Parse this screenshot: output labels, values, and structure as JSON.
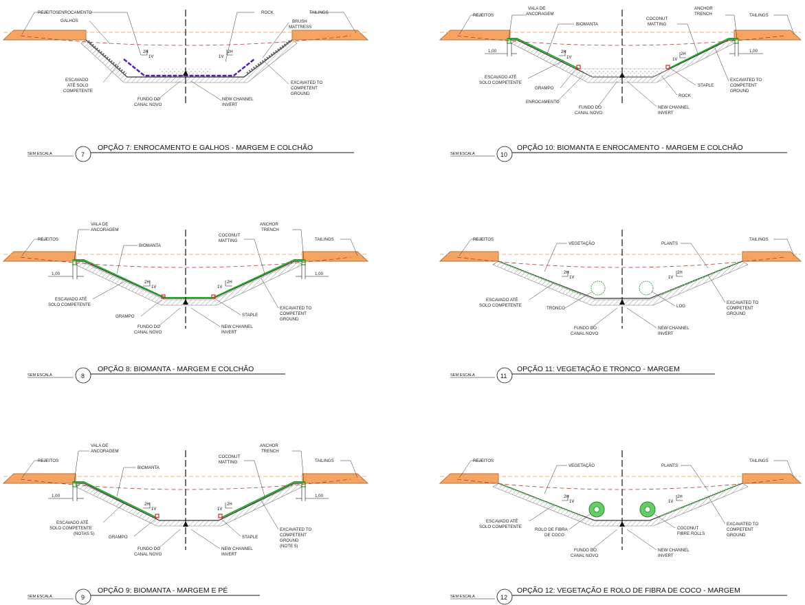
{
  "colors": {
    "ground": "#f4a460",
    "ground_edge": "#b9733a",
    "water_line": "#f0b070",
    "dashed_red": "#b03a3a",
    "mat": "#22aa22",
    "purple": "#5522aa",
    "staple": "#dd2222",
    "hatch": "#888888"
  },
  "sections": [
    {
      "number": "7",
      "scale": "SEM ESCALA",
      "title": "OPÇÃO 7: ENROCAMENTO E GALHOS - MARGEM E COLCHÃO",
      "slope_left": [
        "2H",
        "1V"
      ],
      "slope_right": [
        "1V",
        "2H"
      ],
      "labels": [
        "REJEITOS",
        "ENROCAMENTO",
        "GALHOS",
        "ROCK",
        "TAILINGS",
        "BRUSH",
        "MATTRESS",
        "ESCAVADO",
        "ATÉ SOLO",
        "COMPETENTE",
        "FUNDO DO",
        "CANAL NOVO",
        "NEW CHANNEL",
        "INVERT",
        "EXCAVATED TO",
        "COMPETENT",
        "GROUND"
      ]
    },
    {
      "number": "10",
      "scale": "SEM ESCALA",
      "title": "OPÇÃO 10: BIOMANTA E ENROCAMENTO - MARGEM E COLCHÃO",
      "slope_left": [
        "2H",
        "1V"
      ],
      "slope_right": [
        "1V",
        "2H"
      ],
      "dim_left": "1,00",
      "dim_right": "1,00",
      "labels": [
        "REJEITOS",
        "VALA DE",
        "ANCORAGEM",
        "BIOMANTA",
        "COCONUT",
        "MATTING",
        "ANCHOR",
        "TRENCH",
        "TAILINGS",
        "ESCAVADO ATÉ",
        "SOLO COMPETENTE",
        "GRAMPO",
        "ENROCAMENTO",
        "FUNDO DO",
        "CANAL NOVO",
        "NEW CHANNEL",
        "INVERT",
        "ROCK",
        "STAPLE",
        "EXCAVATED TO",
        "COMPETENT",
        "GROUND"
      ]
    },
    {
      "number": "8",
      "scale": "SEM ESCALA",
      "title": "OPÇÃO 8: BIOMANTA - MARGEM E COLCHÃO",
      "slope_left": [
        "2H",
        "1V"
      ],
      "slope_right": [
        "1V",
        "2H"
      ],
      "dim_left": "1,00",
      "dim_right": "1,00",
      "labels": [
        "REJEITOS",
        "VALA DE",
        "ANCORAGEM",
        "BIOMANTA",
        "COCONUT",
        "MATTING",
        "ANCHOR",
        "TRENCH",
        "TAILINGS",
        "ESCAVADO ATÉ",
        "SOLO COMPETENTE",
        "GRAMPO",
        "FUNDO DO",
        "CANAL NOVO",
        "NEW CHANNEL",
        "INVERT",
        "STAPLE",
        "EXCAVATED TO",
        "COMPETENT",
        "GROUND"
      ]
    },
    {
      "number": "11",
      "scale": "SEM ESCALA",
      "title": "OPÇÃO 11: VEGETAÇÃO E TRONCO - MARGEM",
      "slope_left": [
        "2H",
        "1V"
      ],
      "slope_right": [
        "1V",
        "2H"
      ],
      "labels": [
        "REJEITOS",
        "VEGETAÇÃO",
        "PLANTS",
        "TAILINGS",
        "ESCAVADO ATÉ",
        "SOLO COMPETENTE",
        "TRONCO",
        "LOG",
        "FUNDO DO",
        "CANAL NOVO",
        "NEW CHANNEL",
        "INVERT",
        "EXCAVATED TO",
        "COMPETENT",
        "GROUND"
      ]
    },
    {
      "number": "9",
      "scale": "SEM ESCALA",
      "title": "OPÇÃO 9: BIOMANTA - MARGEM E PÉ",
      "slope_left": [
        "2H",
        "1V"
      ],
      "slope_right": [
        "1V",
        "2H"
      ],
      "dim_left": "1,00",
      "dim_right": "1,00",
      "labels": [
        "REJEITOS",
        "VALA DE",
        "ANCORAGEM",
        "BIOMANTA",
        "COCONUT",
        "MATTING",
        "ANCHOR",
        "TRENCH",
        "TAILINGS",
        "ESCAVADO ATÉ",
        "SOLO COMPETENTE",
        "(NOTAS 5)",
        "GRAMPO",
        "FUNDO DO",
        "CANAL NOVO",
        "NEW CHANNEL",
        "INVERT",
        "STAPLE",
        "EXCAVATED TO",
        "COMPETENT",
        "GROUND",
        "(NOTE 5)"
      ]
    },
    {
      "number": "12",
      "scale": "SEM ESCALA",
      "title": "OPÇÃO 12: VEGETAÇÃO E ROLO DE FIBRA DE COCO - MARGEM",
      "slope_left": [
        "2H",
        "1V"
      ],
      "slope_right": [
        "1V",
        "2H"
      ],
      "labels": [
        "REJEITOS",
        "VEGETAÇÃO",
        "PLANTS",
        "TAILINGS",
        "ESCAVADO ATÉ",
        "SOLO COMPETENTE",
        "ROLO DE FIBRA",
        "DE COCO",
        "COCONUT",
        "FIBRE ROLLS",
        "FUNDO DO",
        "CANAL NOVO",
        "NEW CHANNEL",
        "INVERT",
        "EXCAVATED TO",
        "COMPETENT",
        "GROUND"
      ]
    }
  ]
}
